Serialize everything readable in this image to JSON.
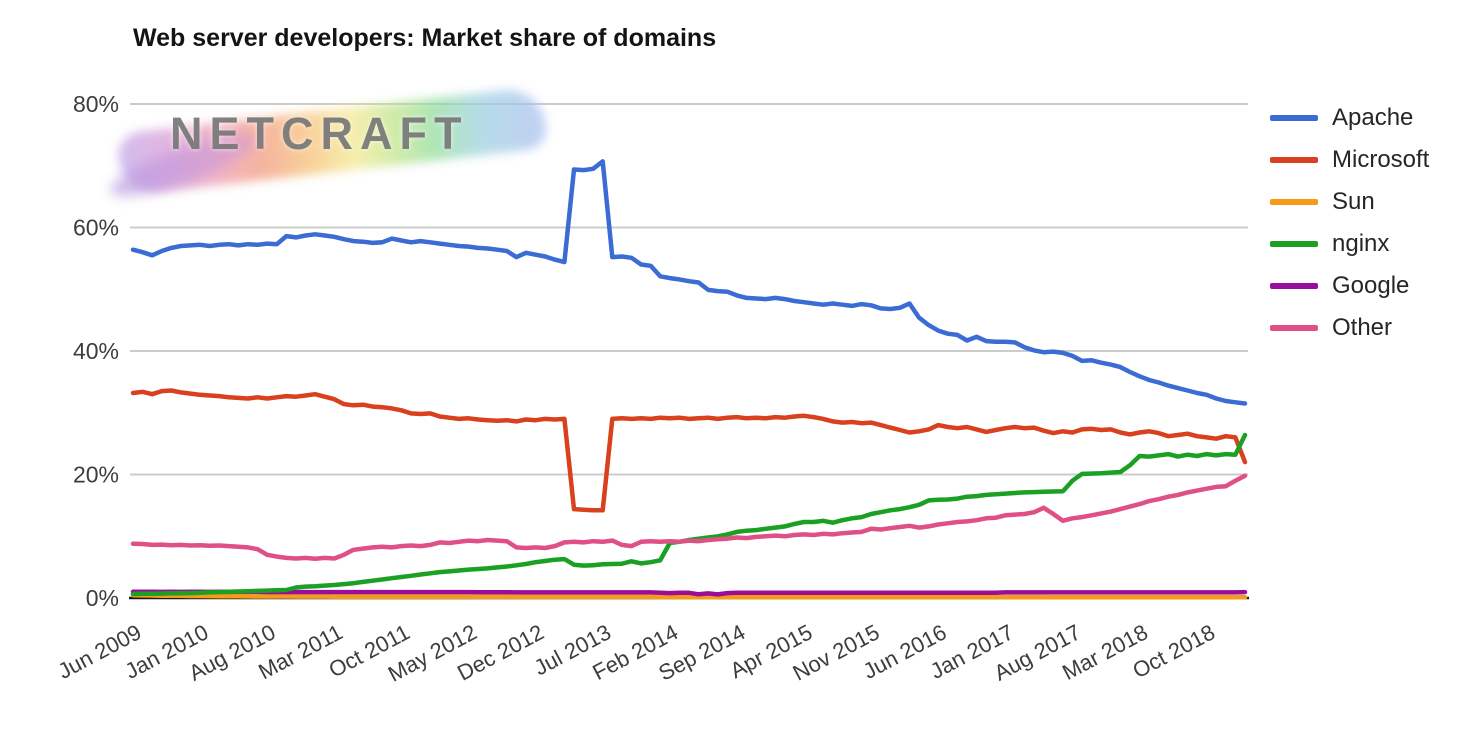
{
  "page": {
    "title": "Web server developers: Market share of domains"
  },
  "logo_text": "NETCRAFT",
  "colors": {
    "background": "#ffffff",
    "gridline": "#cccccc",
    "baseline": "#1a1a1a",
    "axis_text": "#3d3d3d",
    "title_text": "#141414",
    "legend_text": "#262626",
    "logo_text": "#7b7b7b"
  },
  "chart_data": {
    "type": "line",
    "title": "Web server developers: Market share of domains",
    "xlabel": "",
    "ylabel": "",
    "ylim": [
      0,
      80
    ],
    "grid": "horizontal",
    "legend_position": "right",
    "x_start": "Jun 2009",
    "x_end": "Feb 2019",
    "x_interval": "monthly",
    "x_tick_labels": [
      "Jun 2009",
      "Jan 2010",
      "Aug 2010",
      "Mar 2011",
      "Oct 2011",
      "May 2012",
      "Dec 2012",
      "Jul 2013",
      "Feb 2014",
      "Sep 2014",
      "Apr 2015",
      "Nov 2015",
      "Jun 2016",
      "Jan 2017",
      "Aug 2017",
      "Mar 2018",
      "Oct 2018"
    ],
    "x_tick_indices": [
      0,
      7,
      14,
      21,
      28,
      35,
      42,
      49,
      56,
      63,
      70,
      77,
      84,
      91,
      98,
      105,
      112
    ],
    "y_ticks": [
      {
        "value": 0,
        "label": "0%"
      },
      {
        "value": 20,
        "label": "20%"
      },
      {
        "value": 40,
        "label": "40%"
      },
      {
        "value": 60,
        "label": "60%"
      },
      {
        "value": 80,
        "label": "80%"
      }
    ],
    "draw_order": [
      "Sun",
      "Google",
      "Microsoft",
      "Apache",
      "nginx",
      "Other"
    ],
    "series": [
      {
        "name": "Apache",
        "color": "#3B6CD4",
        "values": [
          56.4,
          56.0,
          55.5,
          56.2,
          56.7,
          57.0,
          57.1,
          57.2,
          57.0,
          57.2,
          57.3,
          57.1,
          57.3,
          57.2,
          57.4,
          57.3,
          58.6,
          58.4,
          58.7,
          58.9,
          58.7,
          58.5,
          58.1,
          57.8,
          57.7,
          57.5,
          57.6,
          58.2,
          57.9,
          57.6,
          57.8,
          57.6,
          57.4,
          57.2,
          57.0,
          56.9,
          56.7,
          56.6,
          56.4,
          56.2,
          55.2,
          55.9,
          55.6,
          55.3,
          54.8,
          54.4,
          69.4,
          69.3,
          69.5,
          70.7,
          55.2,
          55.3,
          55.1,
          54.0,
          53.8,
          52.1,
          51.8,
          51.6,
          51.3,
          51.1,
          49.9,
          49.7,
          49.6,
          49.0,
          48.6,
          48.5,
          48.4,
          48.6,
          48.4,
          48.1,
          47.9,
          47.7,
          47.5,
          47.7,
          47.5,
          47.3,
          47.6,
          47.4,
          46.9,
          46.8,
          47.0,
          47.7,
          45.4,
          44.2,
          43.3,
          42.8,
          42.6,
          41.7,
          42.3,
          41.6,
          41.5,
          41.5,
          41.4,
          40.6,
          40.1,
          39.8,
          39.9,
          39.7,
          39.2,
          38.4,
          38.5,
          38.1,
          37.8,
          37.4,
          36.6,
          35.9,
          35.3,
          34.9,
          34.4,
          34.0,
          33.6,
          33.2,
          32.9,
          32.3,
          31.9,
          31.7,
          31.5
        ]
      },
      {
        "name": "Microsoft",
        "color": "#D9411E",
        "values": [
          33.2,
          33.4,
          33.0,
          33.5,
          33.6,
          33.3,
          33.1,
          32.9,
          32.8,
          32.7,
          32.5,
          32.4,
          32.3,
          32.5,
          32.3,
          32.5,
          32.7,
          32.6,
          32.8,
          33.0,
          32.6,
          32.2,
          31.4,
          31.2,
          31.3,
          31.0,
          30.9,
          30.7,
          30.4,
          29.9,
          29.8,
          29.9,
          29.4,
          29.2,
          29.0,
          29.1,
          28.9,
          28.8,
          28.7,
          28.8,
          28.6,
          28.9,
          28.8,
          29.0,
          28.9,
          29.0,
          14.4,
          14.3,
          14.2,
          14.2,
          29.0,
          29.1,
          29.0,
          29.1,
          29.0,
          29.2,
          29.1,
          29.2,
          29.0,
          29.1,
          29.2,
          29.0,
          29.2,
          29.3,
          29.1,
          29.2,
          29.1,
          29.3,
          29.2,
          29.4,
          29.5,
          29.3,
          29.0,
          28.6,
          28.4,
          28.5,
          28.3,
          28.4,
          28.0,
          27.6,
          27.2,
          26.8,
          27.0,
          27.3,
          28.0,
          27.7,
          27.5,
          27.7,
          27.3,
          26.9,
          27.2,
          27.5,
          27.7,
          27.5,
          27.6,
          27.1,
          26.7,
          27.0,
          26.8,
          27.3,
          27.4,
          27.2,
          27.3,
          26.8,
          26.5,
          26.8,
          27.0,
          26.7,
          26.2,
          26.4,
          26.6,
          26.2,
          26.0,
          25.8,
          26.2,
          26.0,
          22.0
        ]
      },
      {
        "name": "Sun",
        "color": "#F59B17",
        "values": [
          0.45,
          0.42,
          0.4,
          0.38,
          0.36,
          0.35,
          0.33,
          0.32,
          0.3,
          0.29,
          0.28,
          0.27,
          0.26,
          0.25,
          0.25,
          0.24,
          0.24,
          0.23,
          0.23,
          0.22,
          0.22,
          0.21,
          0.21,
          0.2,
          0.2,
          0.2,
          0.2,
          0.2,
          0.2,
          0.2,
          0.2,
          0.2,
          0.2,
          0.2,
          0.2,
          0.2,
          0.18,
          0.18,
          0.18,
          0.18,
          0.18,
          0.18,
          0.18,
          0.18,
          0.18,
          0.18,
          0.18,
          0.18,
          0.18,
          0.18,
          0.18,
          0.18,
          0.18,
          0.18,
          0.18,
          0.15,
          0.15,
          0.15,
          0.15,
          0.15,
          0.15,
          0.15,
          0.15,
          0.15,
          0.15,
          0.15,
          0.15,
          0.15,
          0.15,
          0.15,
          0.15,
          0.15,
          0.15,
          0.15,
          0.15,
          0.15,
          0.15,
          0.15,
          0.15,
          0.15,
          0.15,
          0.15,
          0.15,
          0.15,
          0.15,
          0.15,
          0.15,
          0.15,
          0.15,
          0.15,
          0.15,
          0.15,
          0.15,
          0.15,
          0.15,
          0.15,
          0.12,
          0.12,
          0.12,
          0.12,
          0.12,
          0.12,
          0.12,
          0.12,
          0.12,
          0.12,
          0.12,
          0.12,
          0.12,
          0.12,
          0.12,
          0.12,
          0.12,
          0.12,
          0.12,
          0.12,
          0.12
        ]
      },
      {
        "name": "nginx",
        "color": "#1BA024",
        "values": [
          0.65,
          0.68,
          0.7,
          0.72,
          0.75,
          0.78,
          0.8,
          0.85,
          0.9,
          0.95,
          1.0,
          1.05,
          1.1,
          1.15,
          1.2,
          1.25,
          1.3,
          1.7,
          1.85,
          1.9,
          2.0,
          2.1,
          2.25,
          2.4,
          2.6,
          2.8,
          3.0,
          3.2,
          3.4,
          3.6,
          3.8,
          4.0,
          4.2,
          4.3,
          4.45,
          4.6,
          4.7,
          4.8,
          4.95,
          5.1,
          5.3,
          5.5,
          5.8,
          6.0,
          6.2,
          6.3,
          5.4,
          5.25,
          5.3,
          5.45,
          5.5,
          5.55,
          5.95,
          5.6,
          5.8,
          6.1,
          8.9,
          9.1,
          9.4,
          9.6,
          9.8,
          10.0,
          10.3,
          10.7,
          10.9,
          11.0,
          11.2,
          11.4,
          11.6,
          12.0,
          12.3,
          12.3,
          12.5,
          12.2,
          12.6,
          12.9,
          13.1,
          13.6,
          13.9,
          14.2,
          14.4,
          14.7,
          15.1,
          15.8,
          15.9,
          15.95,
          16.1,
          16.4,
          16.5,
          16.7,
          16.8,
          16.9,
          17.0,
          17.1,
          17.15,
          17.2,
          17.25,
          17.3,
          19.0,
          20.1,
          20.15,
          20.2,
          20.3,
          20.4,
          21.5,
          23.0,
          22.9,
          23.1,
          23.3,
          22.9,
          23.2,
          23.0,
          23.3,
          23.1,
          23.3,
          23.2,
          26.4
        ]
      },
      {
        "name": "Google",
        "color": "#9A0D9A",
        "values": [
          1.0,
          1.0,
          1.0,
          0.98,
          1.0,
          0.98,
          1.0,
          1.0,
          0.98,
          1.0,
          0.98,
          1.0,
          0.98,
          0.98,
          0.95,
          0.95,
          0.95,
          0.95,
          0.95,
          0.95,
          0.95,
          0.95,
          0.95,
          0.95,
          0.95,
          0.95,
          0.95,
          0.95,
          0.95,
          0.95,
          0.95,
          0.95,
          0.95,
          0.95,
          0.95,
          0.95,
          0.92,
          0.92,
          0.92,
          0.92,
          0.9,
          0.9,
          0.9,
          0.9,
          0.9,
          0.9,
          0.9,
          0.9,
          0.9,
          0.9,
          0.9,
          0.9,
          0.9,
          0.9,
          0.9,
          0.85,
          0.8,
          0.85,
          0.85,
          0.6,
          0.75,
          0.58,
          0.8,
          0.85,
          0.85,
          0.85,
          0.85,
          0.85,
          0.85,
          0.85,
          0.85,
          0.85,
          0.85,
          0.85,
          0.85,
          0.85,
          0.85,
          0.85,
          0.85,
          0.85,
          0.85,
          0.85,
          0.85,
          0.85,
          0.85,
          0.85,
          0.85,
          0.85,
          0.85,
          0.85,
          0.85,
          0.9,
          0.9,
          0.9,
          0.9,
          0.9,
          0.9,
          0.9,
          0.9,
          0.9,
          0.9,
          0.9,
          0.9,
          0.9,
          0.9,
          0.9,
          0.9,
          0.9,
          0.9,
          0.9,
          0.9,
          0.9,
          0.9,
          0.9,
          0.9,
          0.9,
          0.95
        ]
      },
      {
        "name": "Other",
        "color": "#DF5087",
        "values": [
          8.8,
          8.75,
          8.6,
          8.65,
          8.55,
          8.6,
          8.5,
          8.55,
          8.45,
          8.5,
          8.4,
          8.3,
          8.2,
          7.9,
          7.0,
          6.7,
          6.5,
          6.4,
          6.5,
          6.35,
          6.5,
          6.4,
          7.0,
          7.8,
          8.0,
          8.2,
          8.3,
          8.2,
          8.4,
          8.5,
          8.4,
          8.6,
          9.0,
          8.9,
          9.1,
          9.3,
          9.2,
          9.4,
          9.3,
          9.2,
          8.2,
          8.1,
          8.2,
          8.1,
          8.4,
          9.0,
          9.1,
          9.0,
          9.2,
          9.1,
          9.3,
          8.6,
          8.4,
          9.1,
          9.2,
          9.1,
          9.2,
          9.1,
          9.3,
          9.2,
          9.4,
          9.5,
          9.6,
          9.8,
          9.7,
          9.9,
          10.0,
          10.1,
          10.0,
          10.2,
          10.3,
          10.2,
          10.4,
          10.3,
          10.5,
          10.6,
          10.7,
          11.2,
          11.1,
          11.3,
          11.5,
          11.7,
          11.4,
          11.6,
          11.9,
          12.1,
          12.3,
          12.4,
          12.6,
          12.9,
          13.0,
          13.4,
          13.5,
          13.6,
          13.9,
          14.6,
          13.6,
          12.5,
          12.9,
          13.1,
          13.4,
          13.7,
          14.0,
          14.4,
          14.8,
          15.2,
          15.7,
          16.0,
          16.4,
          16.7,
          17.1,
          17.4,
          17.7,
          18.0,
          18.1,
          19.0,
          19.8
        ]
      }
    ]
  }
}
